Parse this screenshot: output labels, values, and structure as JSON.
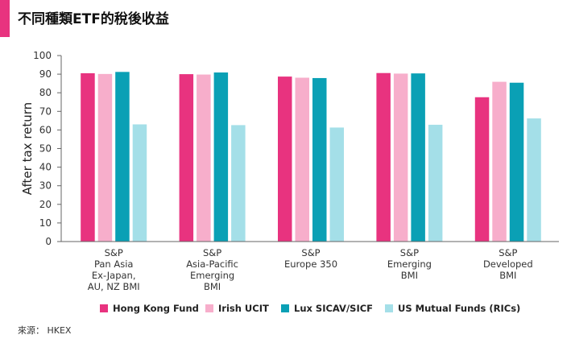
{
  "header": {
    "title": "不同種類ETF的稅後收益",
    "accent_color": "#e8337f"
  },
  "footer": {
    "source": "來源： HKEX"
  },
  "chart_data": {
    "type": "bar",
    "title": "不同種類ETF的稅後收益",
    "xlabel": "",
    "ylabel": "After tax return",
    "ylim": [
      0,
      100
    ],
    "yticks": [
      0,
      10,
      20,
      30,
      40,
      50,
      60,
      70,
      80,
      90,
      100
    ],
    "grid": false,
    "legend_position": "bottom",
    "categories": [
      [
        "S&P",
        "Pan Asia",
        "Ex-Japan,",
        "AU, NZ BMI"
      ],
      [
        "S&P",
        "Asia-Pacific",
        "Emerging",
        "BMI"
      ],
      [
        "S&P",
        "Europe 350"
      ],
      [
        "S&P",
        "Emerging",
        "BMI"
      ],
      [
        "S&P",
        "Developed",
        "BMI"
      ]
    ],
    "series": [
      {
        "name": "Hong Kong Fund",
        "color": "#e8337f",
        "values": [
          90.5,
          90.0,
          88.7,
          90.6,
          77.6
        ]
      },
      {
        "name": "Irish UCIT",
        "color": "#f7aecb",
        "values": [
          90.1,
          89.8,
          88.1,
          90.3,
          85.9
        ]
      },
      {
        "name": "Lux SICAV/SICF",
        "color": "#0aa0b5",
        "values": [
          91.2,
          90.9,
          87.9,
          90.4,
          85.4
        ]
      },
      {
        "name": "US Mutual Funds (RICs)",
        "color": "#a4dfe8",
        "values": [
          63.0,
          62.6,
          61.3,
          62.8,
          66.2
        ]
      }
    ]
  }
}
